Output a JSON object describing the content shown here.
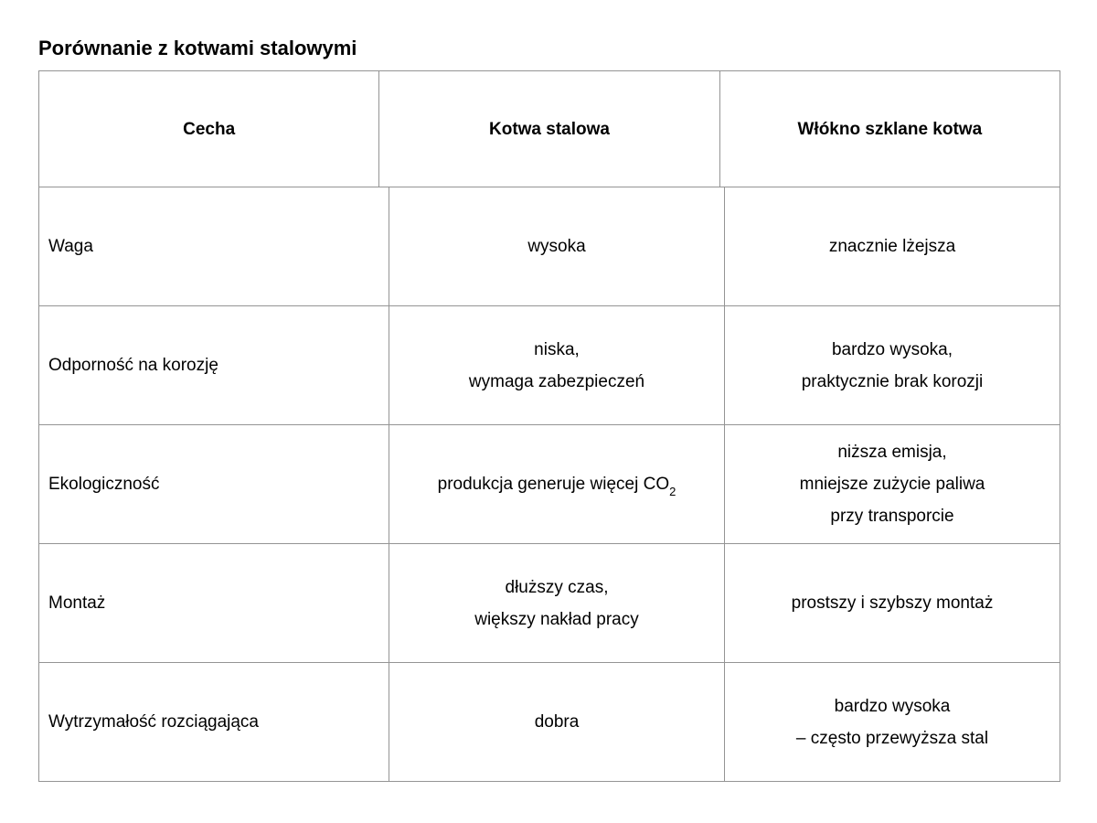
{
  "document": {
    "title": "Porównanie z kotwami stalowymi"
  },
  "table": {
    "headers": [
      "Cecha",
      "Kotwa stalowa",
      "Włókno szklane kotwa"
    ],
    "rows": [
      {
        "feature": "Waga",
        "steel": [
          "wysoka"
        ],
        "fiberglass": [
          "znacznie lżejsza"
        ]
      },
      {
        "feature": "Odporność na korozję",
        "steel": [
          "niska,",
          "wymaga zabezpieczeń"
        ],
        "fiberglass": [
          "bardzo wysoka,",
          "praktycznie brak korozji"
        ]
      },
      {
        "feature": "Ekologiczność",
        "steel": [
          "produkcja generuje więcej CO"
        ],
        "steel_subscript": "2",
        "fiberglass": [
          "niższa emisja,",
          "mniejsze zużycie paliwa",
          "przy transporcie"
        ]
      },
      {
        "feature": "Montaż",
        "steel": [
          "dłuższy czas,",
          "większy nakład pracy"
        ],
        "fiberglass": [
          "prostszy i szybszy montaż"
        ]
      },
      {
        "feature": "Wytrzymałość rozciągająca",
        "steel": [
          "dobra"
        ],
        "fiberglass": [
          "bardzo wysoka",
          "– często przewyższa stal"
        ]
      }
    ]
  }
}
